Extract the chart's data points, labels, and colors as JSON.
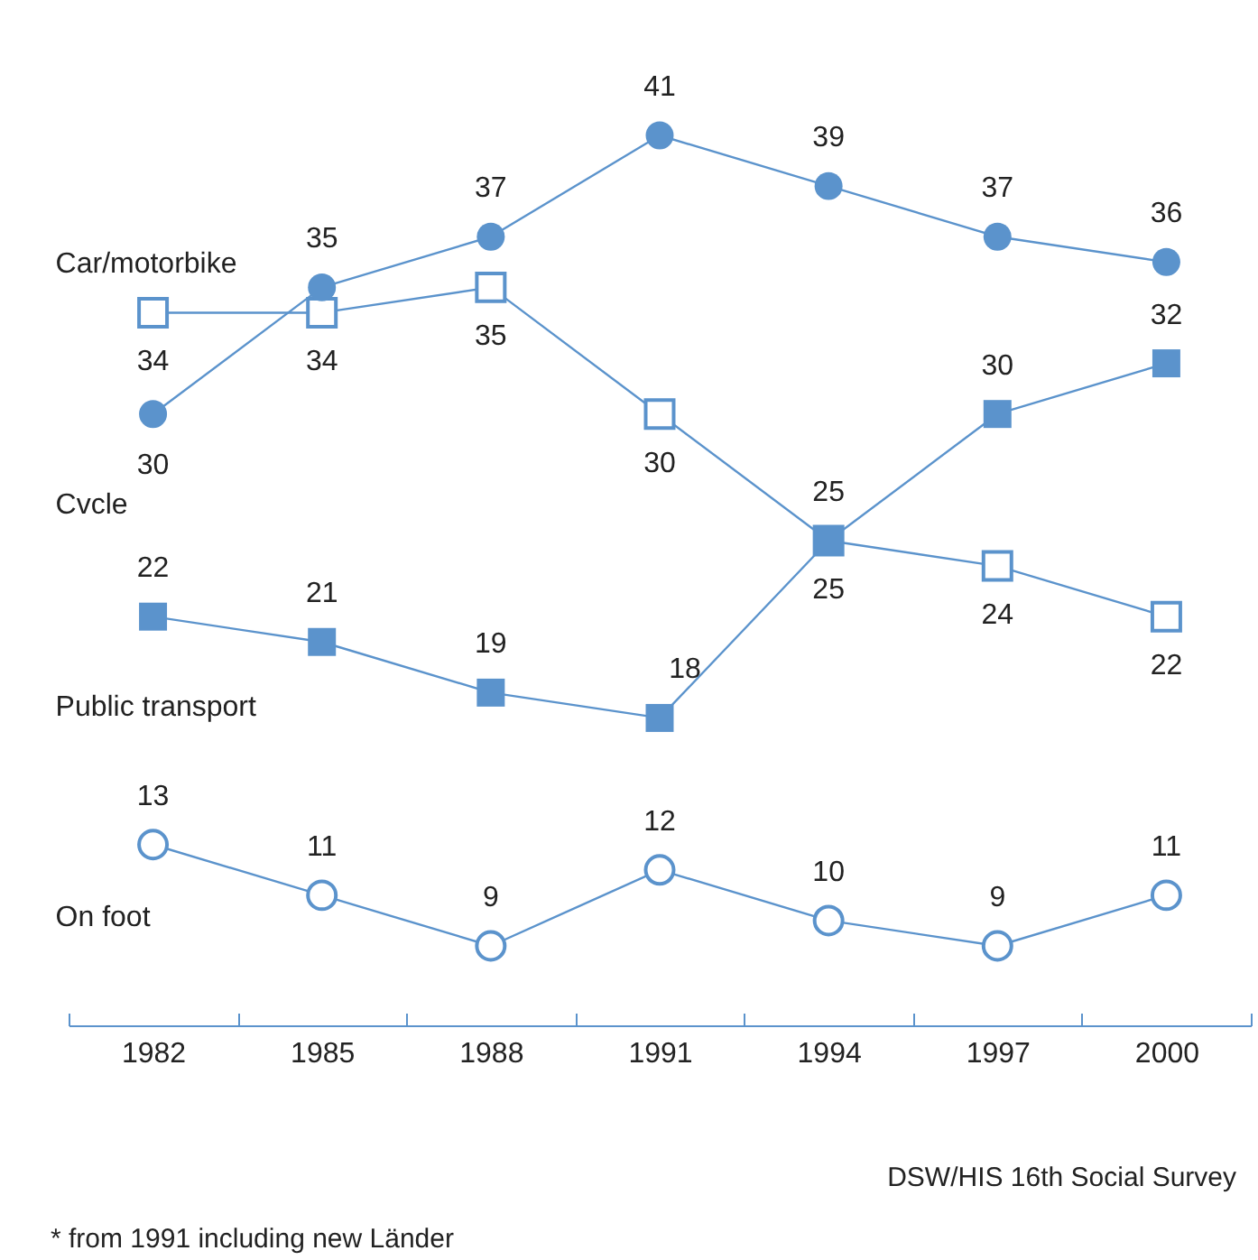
{
  "chart_data": {
    "type": "line",
    "categories": [
      "1982",
      "1985",
      "1988",
      "1991",
      "1994",
      "1997",
      "2000"
    ],
    "series": [
      {
        "name": "Car/motorbike",
        "color": "#5b93cc",
        "marker": "square-open",
        "values": [
          34,
          34,
          35,
          30,
          25,
          24,
          22
        ]
      },
      {
        "name": "Cvcle",
        "color": "#5b93cc",
        "marker": "circle",
        "values": [
          30,
          35,
          37,
          41,
          39,
          37,
          36
        ]
      },
      {
        "name": "Public transport",
        "color": "#5b93cc",
        "marker": "square",
        "values": [
          22,
          21,
          19,
          18,
          25,
          30,
          32
        ]
      },
      {
        "name": "On foot",
        "color": "#5b93cc",
        "marker": "circle-open",
        "values": [
          13,
          11,
          9,
          12,
          10,
          9,
          11
        ]
      }
    ],
    "data_labels": true,
    "grid": false,
    "annotations": [
      "DSW/HIS 16th Social Survey",
      "* from 1991 including new Länder"
    ]
  }
}
